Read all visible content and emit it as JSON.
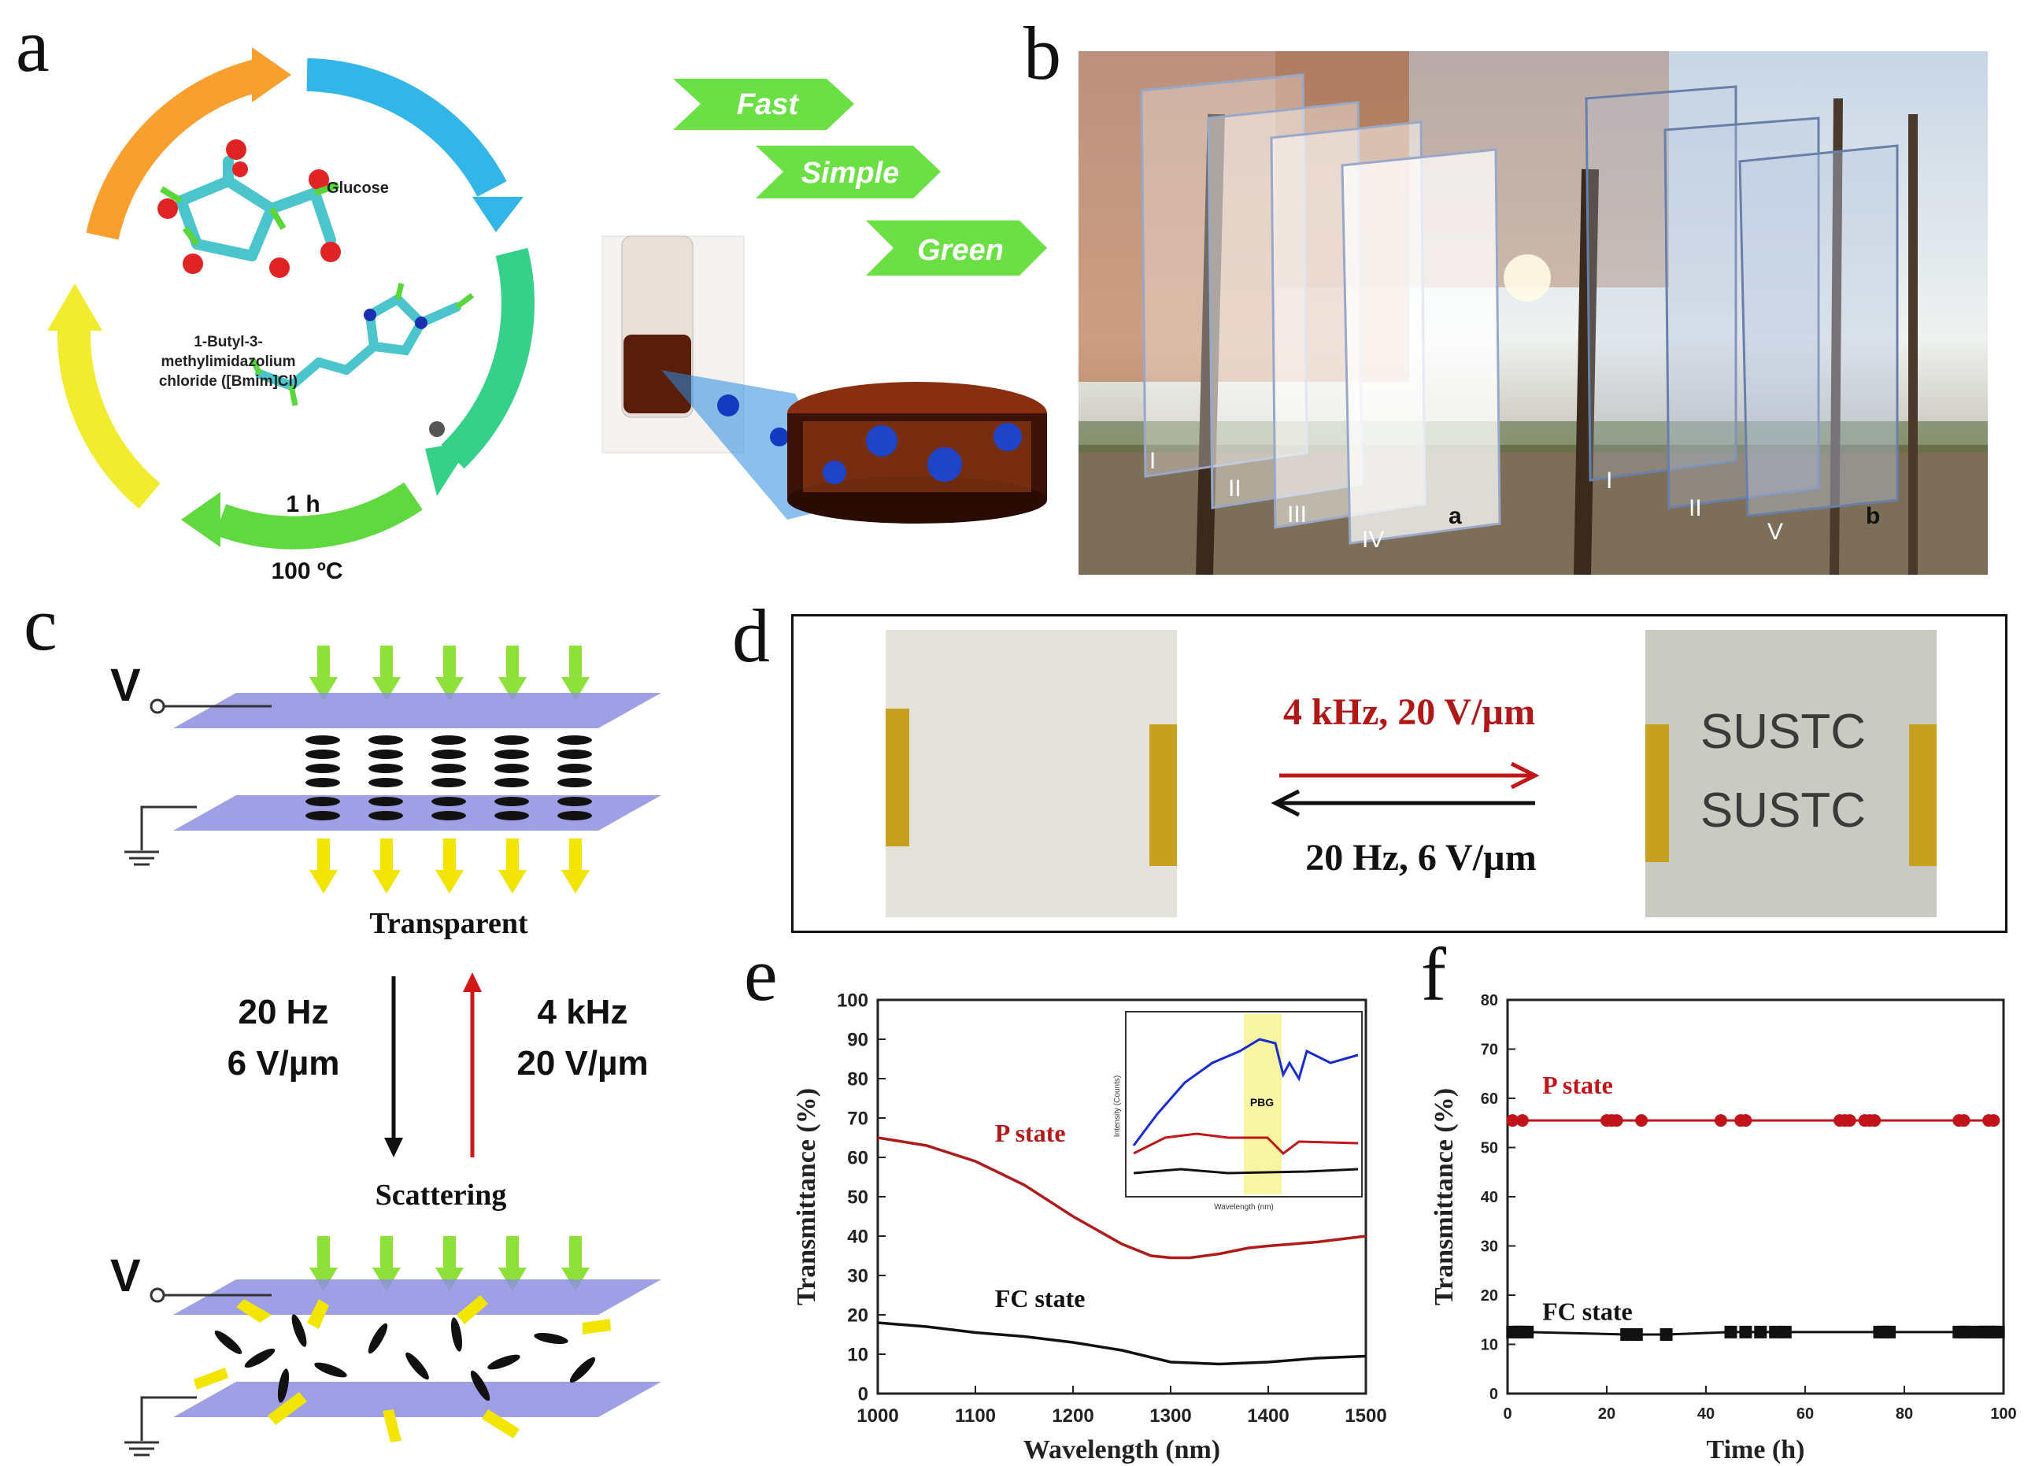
{
  "panels": {
    "a": "a",
    "b": "b",
    "c": "c",
    "d": "d",
    "e": "e",
    "f": "f"
  },
  "panel_a": {
    "glucose_label": "Glucose",
    "il_label_lines": [
      "1-Butyl-3-",
      "methylimidazolium",
      "chloride ([Bmim]Cl)"
    ],
    "time_label": "1 h",
    "temp_label": "100 ºC",
    "banners": [
      "Fast",
      "Simple",
      "Green"
    ]
  },
  "panel_b": {
    "pane_labels_a": [
      "I",
      "II",
      "III",
      "IV",
      "a"
    ],
    "pane_labels_b": [
      "I",
      "II",
      "V",
      "b"
    ]
  },
  "panel_c": {
    "voltage_label": "V",
    "transparent_label": "Transparent",
    "scattering_label": "Scattering",
    "down_label": [
      "20 Hz",
      "6 V/µm"
    ],
    "up_label": [
      "4 kHz",
      "20 V/µm"
    ]
  },
  "panel_d": {
    "forward_label": "4 kHz, 20 V/µm",
    "reverse_label": "20 Hz, 6 V/µm",
    "sample_text": [
      "SUSTC",
      "SUSTC"
    ]
  },
  "colors": {
    "red": "#c0141a",
    "black": "#111111",
    "green_arrow": "#8ee03a",
    "yellow_arrow": "#f2e600",
    "plate": "#8e8ee0"
  },
  "chart_data": [
    {
      "type": "line",
      "panel": "e",
      "xlabel": "Wavelength (nm)",
      "ylabel": "Transmittance (%)",
      "xlim": [
        1000,
        1500
      ],
      "ylim": [
        0,
        100
      ],
      "xticks": [
        1000,
        1100,
        1200,
        1300,
        1400,
        1500
      ],
      "yticks": [
        0,
        10,
        20,
        30,
        40,
        50,
        60,
        70,
        80,
        90,
        100
      ],
      "series": [
        {
          "name": "P state",
          "color": "#b01a1a",
          "x": [
            1000,
            1050,
            1100,
            1150,
            1200,
            1250,
            1280,
            1300,
            1320,
            1350,
            1380,
            1400,
            1450,
            1500
          ],
          "y": [
            65,
            63,
            59,
            53,
            45,
            38,
            35,
            34.5,
            34.5,
            35.5,
            37,
            37.5,
            38.5,
            40
          ]
        },
        {
          "name": "FC state",
          "color": "#111111",
          "x": [
            1000,
            1050,
            1100,
            1150,
            1200,
            1250,
            1300,
            1350,
            1400,
            1450,
            1500
          ],
          "y": [
            18,
            17,
            15.5,
            14.5,
            13,
            11,
            8,
            7.5,
            8,
            9,
            9.5
          ]
        }
      ],
      "inset": {
        "xlabel": "Wavelength (nm)",
        "ylabel": "Intensity (Counts)",
        "band_label": "PBG"
      }
    },
    {
      "type": "line",
      "panel": "f",
      "xlabel": "Time (h)",
      "ylabel": "Transmittance (%)",
      "xlim": [
        0,
        100
      ],
      "ylim": [
        0,
        80
      ],
      "xticks": [
        0,
        20,
        40,
        60,
        80,
        100
      ],
      "yticks": [
        0,
        10,
        20,
        30,
        40,
        50,
        60,
        70,
        80
      ],
      "series": [
        {
          "name": "P state",
          "color": "#c0141a",
          "x": [
            1,
            3,
            20,
            21,
            22,
            27,
            43,
            47,
            48,
            67,
            68,
            69,
            72,
            73,
            74,
            91,
            92,
            97,
            98
          ],
          "y": [
            55.5,
            55.5,
            55.5,
            55.5,
            55.5,
            55.5,
            55.5,
            55.5,
            55.5,
            55.5,
            55.5,
            55.5,
            55.5,
            55.5,
            55.5,
            55.5,
            55.5,
            55.5,
            55.5
          ]
        },
        {
          "name": "FC state",
          "color": "#111111",
          "x": [
            1,
            2,
            3,
            4,
            24,
            25,
            26,
            32,
            45,
            48,
            51,
            54,
            56,
            75,
            76,
            77,
            91,
            92,
            93,
            95,
            96,
            97,
            98,
            99
          ],
          "y": [
            12.5,
            12.5,
            12.5,
            12.5,
            12,
            12,
            12,
            12,
            12.5,
            12.5,
            12.5,
            12.5,
            12.5,
            12.5,
            12.5,
            12.5,
            12.5,
            12.5,
            12.5,
            12.5,
            12.5,
            12.5,
            12.5,
            12.5
          ]
        }
      ]
    }
  ]
}
